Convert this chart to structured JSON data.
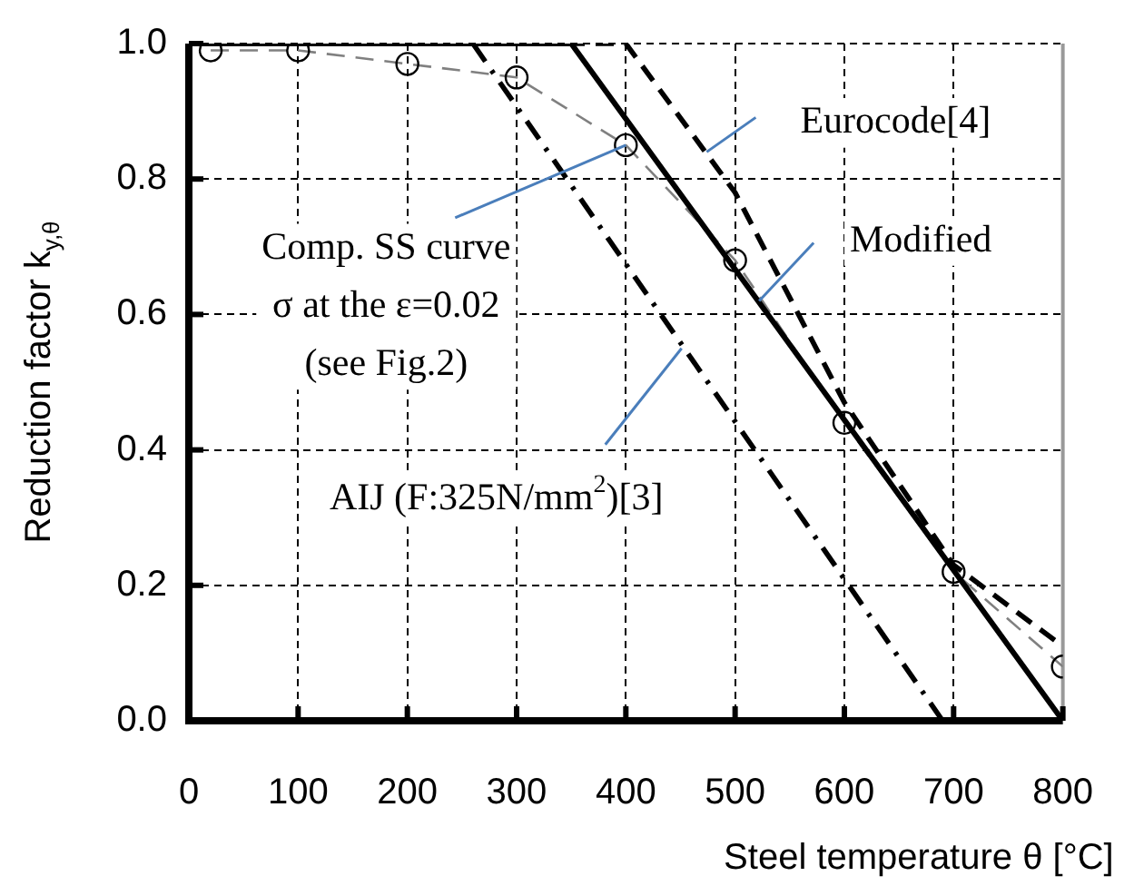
{
  "chart_data": {
    "type": "line",
    "xlabel": "Steel temperature θ [°C]",
    "ylabel": "Reduction factor k$_{y,θ}$",
    "xlim": [
      0,
      800
    ],
    "xticks": [
      0,
      100,
      200,
      300,
      400,
      500,
      600,
      700,
      800
    ],
    "ylim": [
      0,
      1
    ],
    "yticks": [
      {
        "value": 0,
        "label": "0.0"
      },
      0.2,
      0.4,
      0.6,
      0.8,
      {
        "value": 1,
        "label": "1.0"
      }
    ],
    "grid": true,
    "legend": false,
    "series": [
      {
        "color": "#808080",
        "marker": "circle",
        "line_style": "dashed",
        "x": [
          20,
          100,
          200,
          300,
          400,
          500,
          600,
          700,
          800
        ],
        "values": [
          0.99,
          0.99,
          0.97,
          0.95,
          0.85,
          0.68,
          0.44,
          0.22,
          0.08
        ]
      },
      {
        "color": "#000000",
        "marker": "none",
        "line_style": "solid",
        "x": [
          0,
          350,
          800
        ],
        "values": [
          1,
          1,
          0
        ]
      },
      {
        "color": "#000000",
        "marker": "none",
        "line_style": "dashed",
        "x": [
          0,
          400,
          500,
          600,
          700,
          800
        ],
        "values": [
          1,
          1,
          0.78,
          0.47,
          0.23,
          0.11
        ]
      },
      {
        "color": "#000000",
        "marker": "none",
        "line_style": "dashdot",
        "x": [
          260,
          690
        ],
        "values": [
          1,
          0
        ]
      }
    ],
    "annotations": [
      {
        "text": "Eurocode[4]",
        "x": 474,
        "y": 0.84
      },
      {
        "text": "Modified",
        "x": 522,
        "y": 0.62
      },
      {
        "text": "Comp. SS curve\nσ at the ε=0.02\n(see Fig.2)",
        "x": 400,
        "y": 0.85
      },
      {
        "text": "AIJ (F:325N/mm$^{2}$)[3]",
        "x": 451,
        "y": 0.55
      }
    ]
  }
}
